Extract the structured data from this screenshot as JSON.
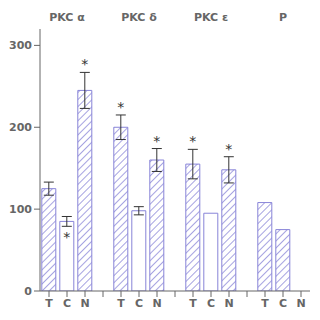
{
  "chart_data": {
    "type": "bar",
    "categories": [
      "T",
      "C",
      "N"
    ],
    "ylim": [
      0,
      320
    ],
    "yticks": [
      0,
      100,
      200,
      300
    ],
    "grid": false,
    "groups": [
      {
        "name": "PKC α",
        "values": [
          125,
          85,
          245
        ],
        "errors": [
          8,
          6,
          22
        ],
        "hatch": [
          true,
          false,
          true
        ],
        "annotations": [
          null,
          "*",
          "*"
        ],
        "annotation_below": [
          false,
          true,
          false
        ]
      },
      {
        "name": "PKC δ",
        "values": [
          200,
          98,
          160
        ],
        "errors": [
          15,
          5,
          14
        ],
        "hatch": [
          true,
          false,
          true
        ],
        "annotations": [
          "*",
          null,
          "*"
        ],
        "annotation_below": [
          false,
          false,
          false
        ]
      },
      {
        "name": "PKC ε",
        "values": [
          155,
          95,
          148
        ],
        "errors": [
          18,
          0,
          16
        ],
        "hatch": [
          true,
          false,
          true
        ],
        "annotations": [
          "*",
          null,
          "*"
        ],
        "annotation_below": [
          false,
          false,
          false
        ]
      },
      {
        "name": "P",
        "values": [
          108,
          75,
          0
        ],
        "errors": [
          0,
          0,
          0
        ],
        "hatch": [
          true,
          true,
          false
        ],
        "annotations": [
          null,
          null,
          null
        ],
        "annotation_below": [
          false,
          false,
          false
        ]
      }
    ]
  }
}
